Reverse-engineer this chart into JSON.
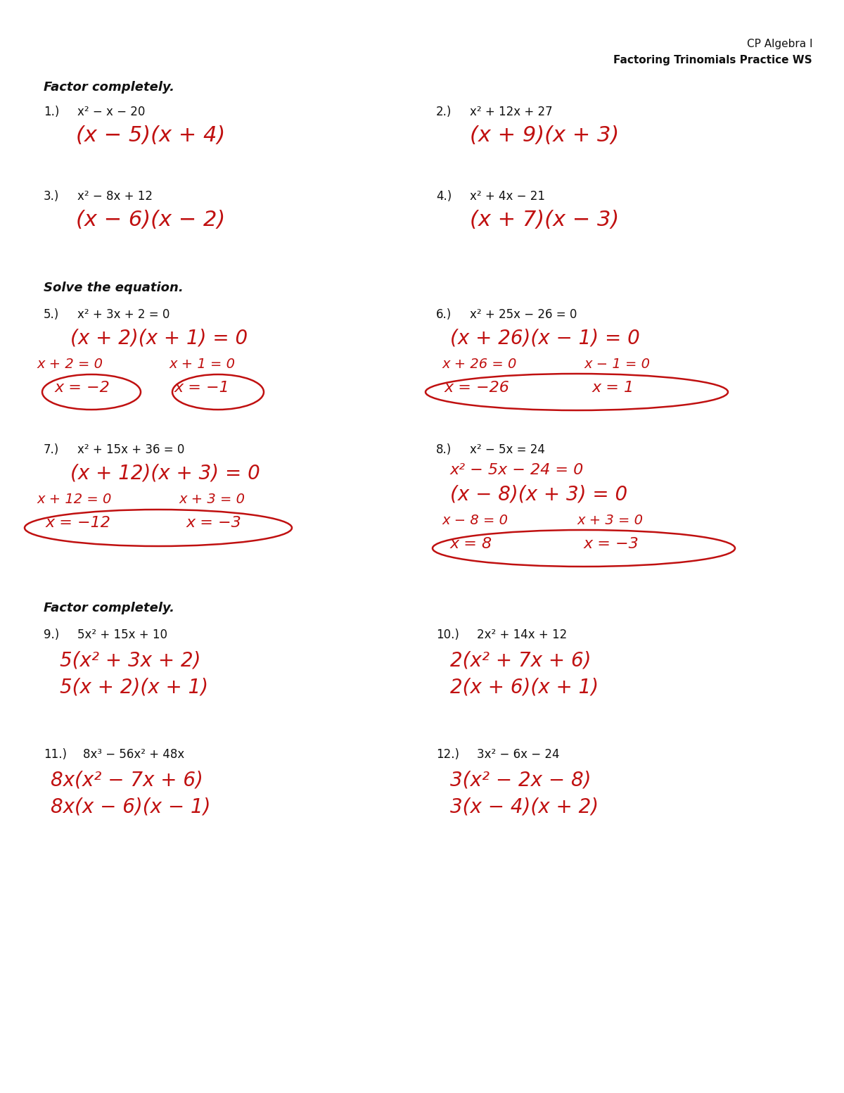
{
  "bg_color": "#ffffff",
  "header1": "CP Algebra I",
  "header2": "Factoring Trinomials Practice WS",
  "sec1": "Factor completely.",
  "sec2": "Solve the equation.",
  "sec3": "Factor completely.",
  "hw_color": "#c01010",
  "pr_color": "#111111",
  "figw": 12.0,
  "figh": 15.53,
  "dpi": 100
}
